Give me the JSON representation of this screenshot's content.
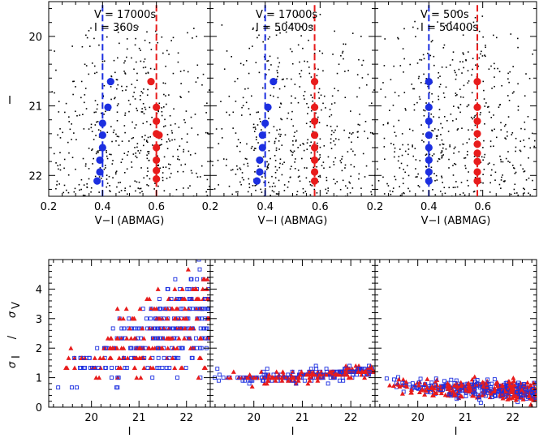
{
  "figure": {
    "top_row_ylabel": "I",
    "bottom_row_ylabel_sub_i": "I",
    "bottom_row_ylabel_sub_v": "V",
    "bottom_row_ylabel_sigma": "σ",
    "bottom_row_ylabel_slash": "/",
    "colors": {
      "red": "#e81c1c",
      "blue": "#1c2fe0",
      "black": "#000000"
    }
  },
  "chart_data": [
    {
      "type": "scatter",
      "panel": "cmd-1",
      "annotation_v": "V  =  17000s",
      "annotation_i": "I  =  360s",
      "xlabel": "V−I (ABMAG)",
      "ylabel": "I",
      "xlim": [
        0.2,
        0.8
      ],
      "ylim": [
        22.3,
        19.5
      ],
      "xticks": [
        {
          "v": 0.2,
          "t": "0.2"
        },
        {
          "v": 0.4,
          "t": "0.4"
        },
        {
          "v": 0.6,
          "t": "0.6"
        }
      ],
      "yticks": [
        {
          "v": 20,
          "t": "20"
        },
        {
          "v": 21,
          "t": "21"
        },
        {
          "v": 22,
          "t": "22"
        }
      ],
      "blue_line_x": 0.4,
      "red_line_x": 0.6,
      "blue_points": [
        [
          0.43,
          20.65
        ],
        [
          0.42,
          21.02
        ],
        [
          0.4,
          21.25
        ],
        [
          0.4,
          21.42
        ],
        [
          0.4,
          21.6
        ],
        [
          0.39,
          21.78
        ],
        [
          0.39,
          21.95
        ],
        [
          0.38,
          22.08
        ]
      ],
      "red_points": [
        [
          0.58,
          20.65
        ],
        [
          0.6,
          21.02
        ],
        [
          0.6,
          21.22
        ],
        [
          0.6,
          21.4
        ],
        [
          0.61,
          21.42
        ],
        [
          0.6,
          21.6
        ],
        [
          0.6,
          21.78
        ],
        [
          0.6,
          21.93
        ],
        [
          0.6,
          22.05
        ]
      ]
    },
    {
      "type": "scatter",
      "panel": "cmd-2",
      "annotation_v": "V  =  17000s",
      "annotation_i": "I  =  50400s",
      "xlabel": "V−I (ABMAG)",
      "ylabel": "",
      "xlim": [
        0.2,
        0.8
      ],
      "ylim": [
        22.3,
        19.5
      ],
      "xticks": [
        {
          "v": 0.2,
          "t": "0.2"
        },
        {
          "v": 0.4,
          "t": "0.4"
        },
        {
          "v": 0.6,
          "t": "0.6"
        }
      ],
      "yticks": [],
      "blue_line_x": 0.4,
      "red_line_x": 0.58,
      "blue_points": [
        [
          0.43,
          20.65
        ],
        [
          0.41,
          21.02
        ],
        [
          0.4,
          21.25
        ],
        [
          0.39,
          21.42
        ],
        [
          0.39,
          21.6
        ],
        [
          0.38,
          21.78
        ],
        [
          0.38,
          21.95
        ],
        [
          0.37,
          22.08
        ]
      ],
      "red_points": [
        [
          0.58,
          20.65
        ],
        [
          0.58,
          21.02
        ],
        [
          0.58,
          21.22
        ],
        [
          0.58,
          21.42
        ],
        [
          0.58,
          21.6
        ],
        [
          0.58,
          21.78
        ],
        [
          0.58,
          21.95
        ],
        [
          0.58,
          22.08
        ]
      ]
    },
    {
      "type": "scatter",
      "panel": "cmd-3",
      "annotation_v": "V  =  500s",
      "annotation_i": "I  =  50400s",
      "xlabel": "V−I (ABMAG)",
      "ylabel": "",
      "xlim": [
        0.2,
        0.8
      ],
      "ylim": [
        22.3,
        19.5
      ],
      "xticks": [
        {
          "v": 0.2,
          "t": "0.2"
        },
        {
          "v": 0.4,
          "t": "0.4"
        },
        {
          "v": 0.6,
          "t": "0.6"
        }
      ],
      "yticks": [],
      "blue_line_x": 0.4,
      "red_line_x": 0.58,
      "blue_points": [
        [
          0.4,
          20.65
        ],
        [
          0.4,
          21.02
        ],
        [
          0.4,
          21.22
        ],
        [
          0.4,
          21.42
        ],
        [
          0.4,
          21.6
        ],
        [
          0.4,
          21.78
        ],
        [
          0.4,
          21.95
        ],
        [
          0.4,
          22.08
        ]
      ],
      "red_points": [
        [
          0.58,
          20.65
        ],
        [
          0.58,
          21.02
        ],
        [
          0.58,
          21.22
        ],
        [
          0.58,
          21.4
        ],
        [
          0.58,
          21.55
        ],
        [
          0.58,
          21.68
        ],
        [
          0.58,
          21.8
        ],
        [
          0.58,
          21.95
        ],
        [
          0.58,
          22.08
        ]
      ]
    },
    {
      "type": "scatter",
      "panel": "err-1",
      "xlabel": "I",
      "xlim": [
        19.1,
        22.5
      ],
      "ylim": [
        0,
        5
      ],
      "xticks": [
        {
          "v": 20,
          "t": "20"
        },
        {
          "v": 21,
          "t": "21"
        },
        {
          "v": 22,
          "t": "22"
        }
      ],
      "yticks": [
        {
          "v": 0,
          "t": "0"
        },
        {
          "v": 1,
          "t": "1"
        },
        {
          "v": 2,
          "t": "2"
        },
        {
          "v": 3,
          "t": "3"
        },
        {
          "v": 4,
          "t": "4"
        }
      ],
      "series": [
        {
          "name": "blue squares",
          "marker": "square"
        },
        {
          "name": "red triangles",
          "marker": "triangle"
        }
      ],
      "trend": "ratio increases from ~1 at I=19.5 to ~2–4.5 at I=22.4"
    },
    {
      "type": "scatter",
      "panel": "err-2",
      "xlabel": "I",
      "xlim": [
        19.1,
        22.5
      ],
      "ylim": [
        0,
        5
      ],
      "xticks": [
        {
          "v": 20,
          "t": "20"
        },
        {
          "v": 21,
          "t": "21"
        },
        {
          "v": 22,
          "t": "22"
        }
      ],
      "yticks": [],
      "series": [
        {
          "name": "blue squares",
          "marker": "square"
        },
        {
          "name": "red triangles",
          "marker": "triangle"
        }
      ],
      "trend": "ratio near 1.0, rising slightly to ~1.3 at faint end"
    },
    {
      "type": "scatter",
      "panel": "err-3",
      "xlabel": "I",
      "xlim": [
        19.1,
        22.5
      ],
      "ylim": [
        0,
        5
      ],
      "xticks": [
        {
          "v": 20,
          "t": "20"
        },
        {
          "v": 21,
          "t": "21"
        },
        {
          "v": 22,
          "t": "22"
        }
      ],
      "yticks": [],
      "series": [
        {
          "name": "blue squares",
          "marker": "square"
        },
        {
          "name": "red triangles",
          "marker": "triangle"
        }
      ],
      "trend": "ratio ~0.7 at bright end declining to ~0.5 at faint end"
    }
  ]
}
